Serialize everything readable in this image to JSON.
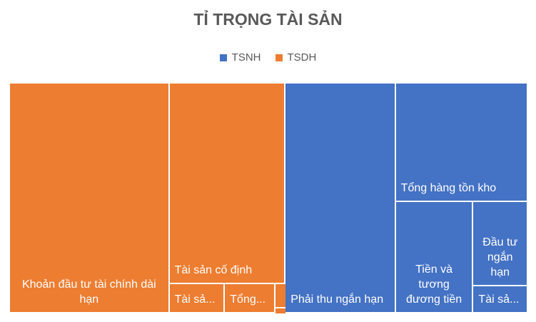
{
  "chart_data": {
    "type": "treemap",
    "title": "TỈ TRỌNG TÀI SẢN",
    "series": [
      {
        "name": "TSNH",
        "color": "#4472c4",
        "categories": [
          "Phải thu ngắn hạn",
          "Tổng hàng tồn kho",
          "Tiền và tương đương tiền",
          "Đầu tư ngắn hạn",
          "Tài sả..."
        ],
        "values": [
          49.6,
          30.7,
          16.9,
          9.0,
          2.9
        ]
      },
      {
        "name": "TSDH",
        "color": "#ed7d31",
        "categories": [
          "Khoản đầu tư tài chính dài hạn",
          "Tài sản cố định",
          "Tài sả...",
          "Tổng...",
          null,
          null
        ],
        "values": [
          71.8,
          45.5,
          3.2,
          2.9,
          0.5,
          0.1
        ]
      }
    ],
    "legend": "top"
  }
}
